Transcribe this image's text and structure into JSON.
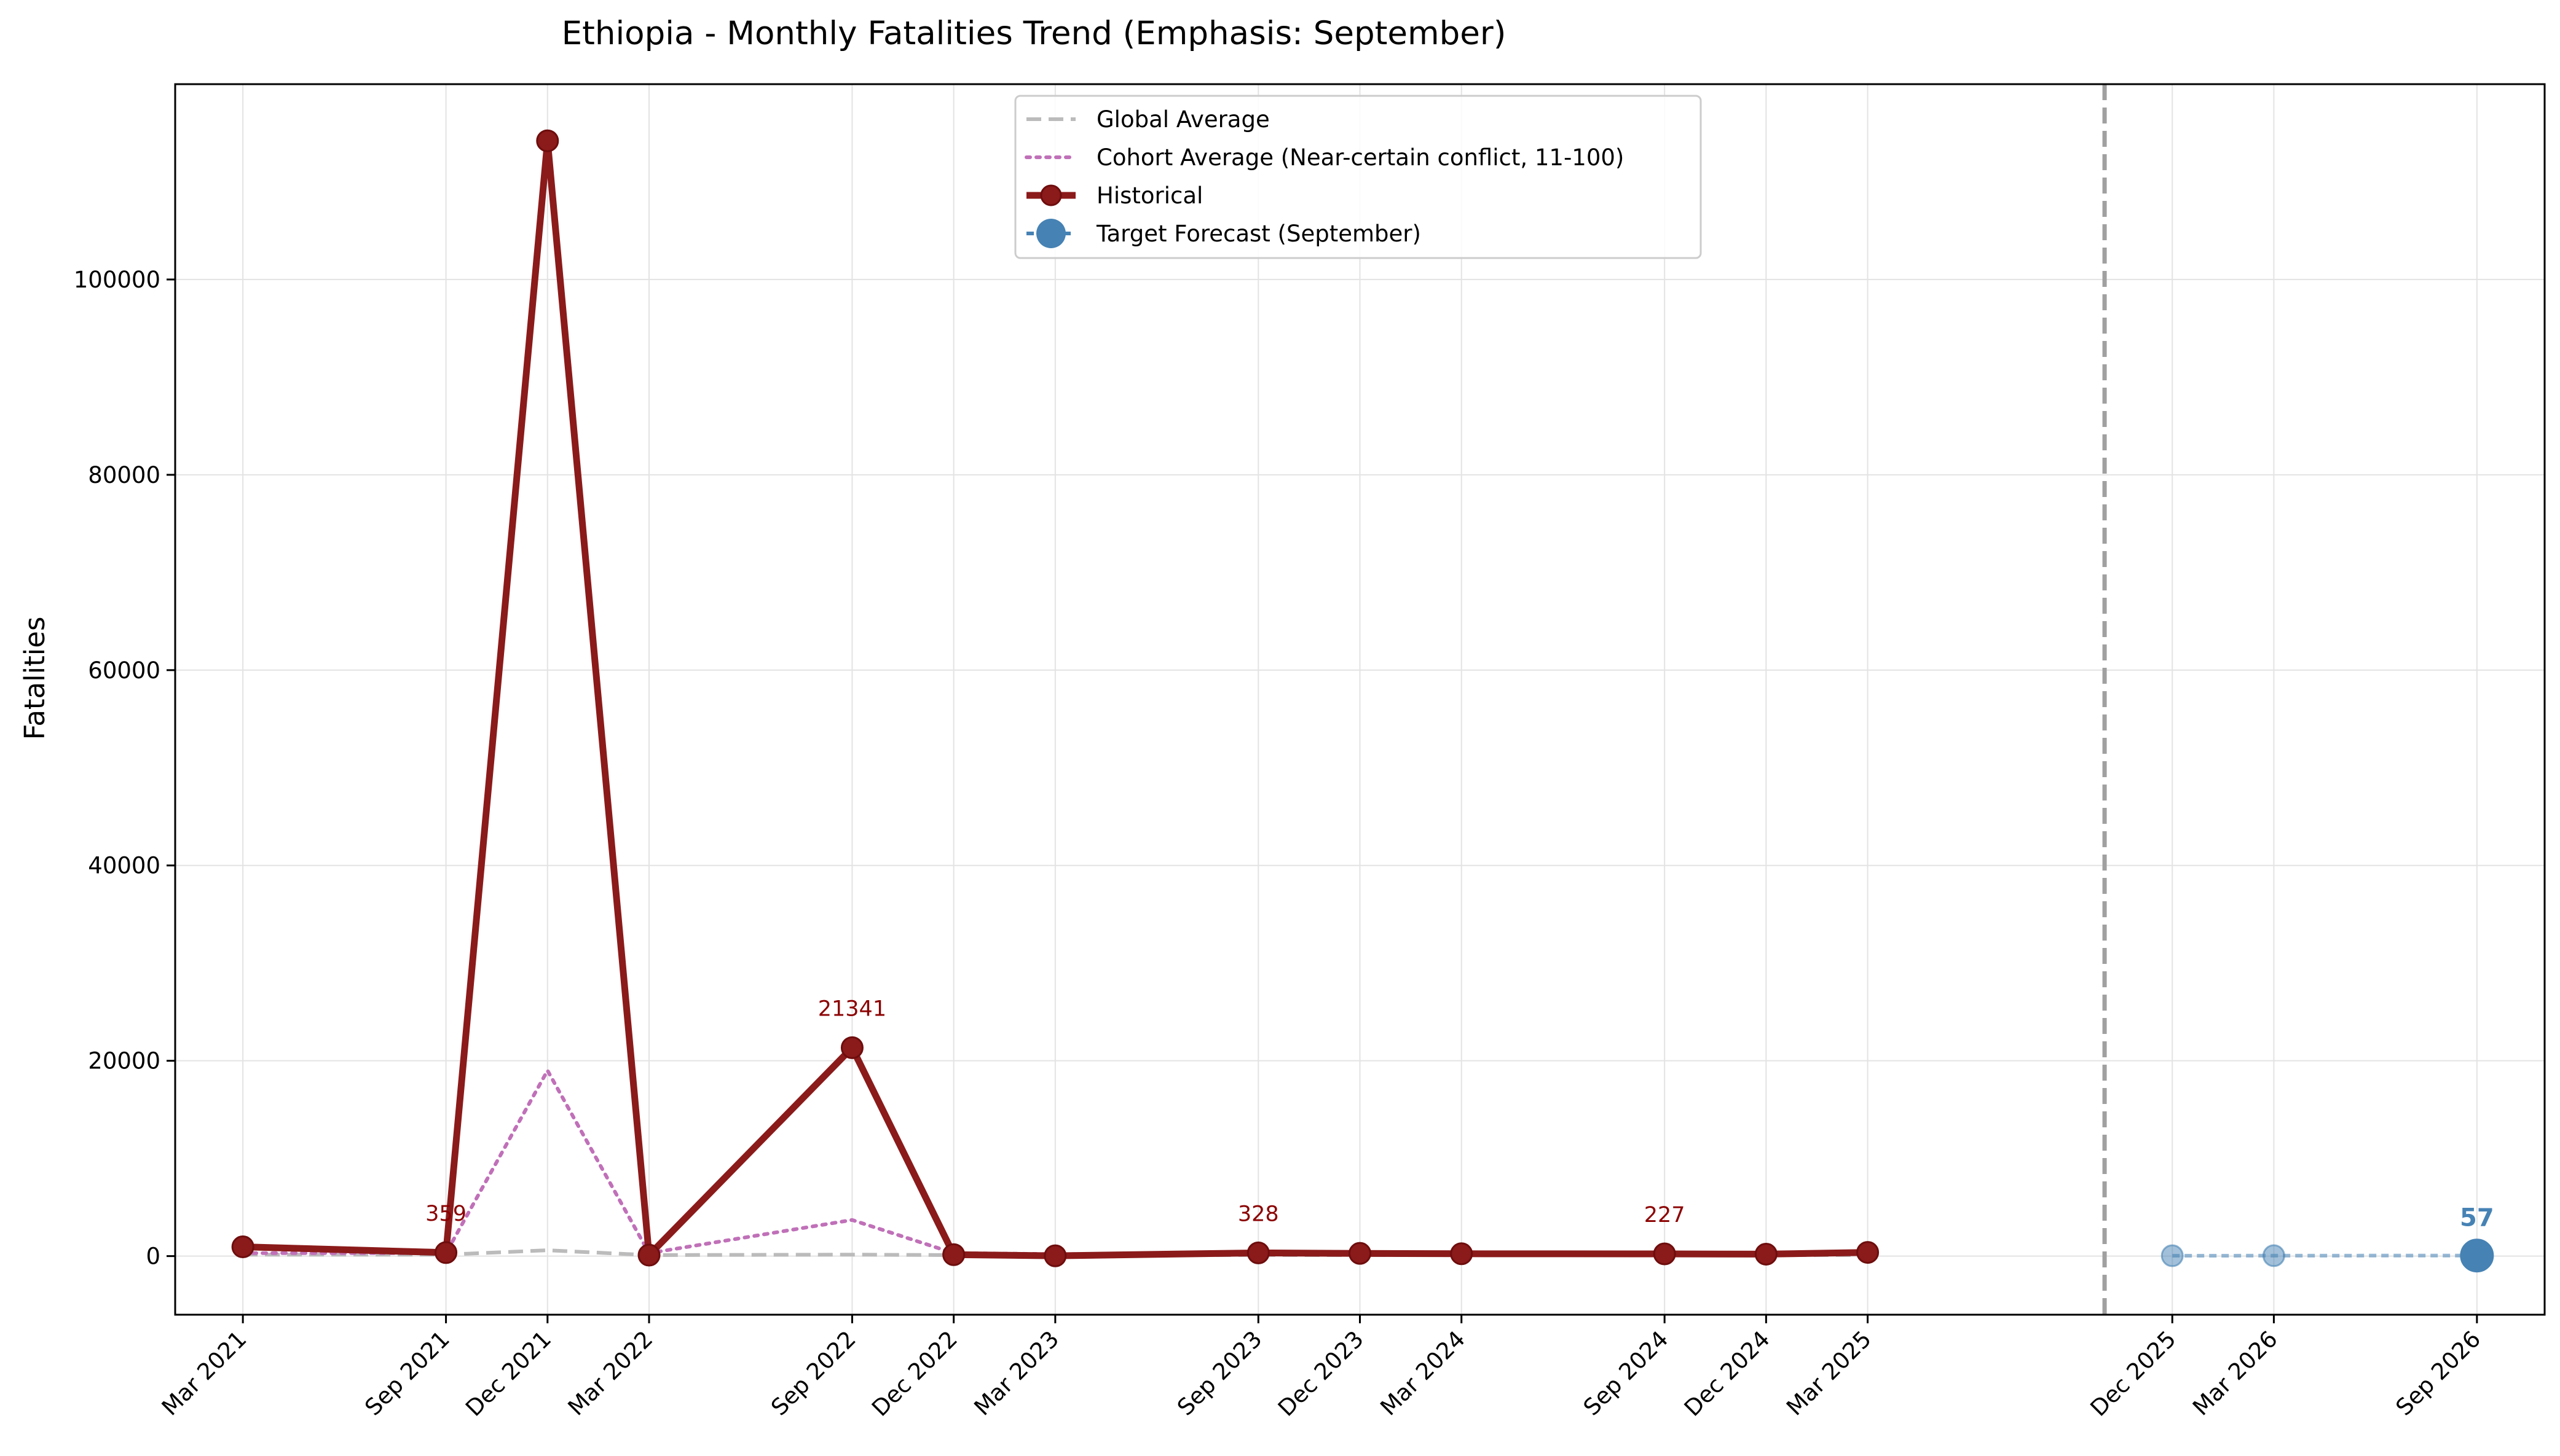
{
  "chart_data": {
    "type": "line",
    "title": "Ethiopia - Monthly Fatalities Trend (Emphasis: September)",
    "xlabel": "",
    "ylabel": "Fatalities",
    "x_range": [
      "2021-01",
      "2026-11"
    ],
    "ylim": [
      -6000,
      120000
    ],
    "y_ticks": [
      0,
      20000,
      40000,
      60000,
      80000,
      100000
    ],
    "x_ticks": [
      {
        "date": "2021-03",
        "label": "Mar 2021"
      },
      {
        "date": "2021-09",
        "label": "Sep 2021"
      },
      {
        "date": "2021-12",
        "label": "Dec 2021"
      },
      {
        "date": "2022-03",
        "label": "Mar 2022"
      },
      {
        "date": "2022-09",
        "label": "Sep 2022"
      },
      {
        "date": "2022-12",
        "label": "Dec 2022"
      },
      {
        "date": "2023-03",
        "label": "Mar 2023"
      },
      {
        "date": "2023-09",
        "label": "Sep 2023"
      },
      {
        "date": "2023-12",
        "label": "Dec 2023"
      },
      {
        "date": "2024-03",
        "label": "Mar 2024"
      },
      {
        "date": "2024-09",
        "label": "Sep 2024"
      },
      {
        "date": "2024-12",
        "label": "Dec 2024"
      },
      {
        "date": "2025-03",
        "label": "Mar 2025"
      },
      {
        "date": "2025-12",
        "label": "Dec 2025"
      },
      {
        "date": "2026-03",
        "label": "Mar 2026"
      },
      {
        "date": "2026-09",
        "label": "Sep 2026"
      }
    ],
    "grid": true,
    "legend_position": "top-center",
    "forecast_divider_date": "2025-10",
    "series": [
      {
        "name": "Global Average",
        "style": "dashed",
        "color": "#bbbbbb",
        "points": [
          {
            "date": "2021-03",
            "value": 150
          },
          {
            "date": "2021-09",
            "value": 150
          },
          {
            "date": "2021-12",
            "value": 600
          },
          {
            "date": "2022-03",
            "value": 100
          },
          {
            "date": "2022-09",
            "value": 150
          },
          {
            "date": "2022-12",
            "value": 100
          },
          {
            "date": "2023-03",
            "value": 100
          },
          {
            "date": "2023-09",
            "value": 100
          },
          {
            "date": "2023-12",
            "value": 100
          },
          {
            "date": "2024-03",
            "value": 100
          },
          {
            "date": "2024-09",
            "value": 100
          },
          {
            "date": "2024-12",
            "value": 100
          },
          {
            "date": "2025-03",
            "value": 100
          }
        ]
      },
      {
        "name": "Cohort Average (Near-certain conflict, 11-100)",
        "style": "dotted",
        "color": "#c070b8",
        "points": [
          {
            "date": "2021-03",
            "value": 300
          },
          {
            "date": "2021-09",
            "value": 300
          },
          {
            "date": "2021-12",
            "value": 19000
          },
          {
            "date": "2022-03",
            "value": 300
          },
          {
            "date": "2022-09",
            "value": 3700
          },
          {
            "date": "2022-12",
            "value": 300
          },
          {
            "date": "2023-03",
            "value": 200
          },
          {
            "date": "2023-09",
            "value": 200
          },
          {
            "date": "2023-12",
            "value": 200
          },
          {
            "date": "2024-03",
            "value": 200
          },
          {
            "date": "2024-09",
            "value": 200
          },
          {
            "date": "2024-12",
            "value": 200
          },
          {
            "date": "2025-03",
            "value": 200
          }
        ]
      },
      {
        "name": "Historical",
        "style": "solid-marker",
        "color": "#8b1a1a",
        "points": [
          {
            "date": "2021-03",
            "value": 950
          },
          {
            "date": "2021-09",
            "value": 359
          },
          {
            "date": "2021-12",
            "value": 114200
          },
          {
            "date": "2022-03",
            "value": 100
          },
          {
            "date": "2022-09",
            "value": 21341
          },
          {
            "date": "2022-12",
            "value": 150
          },
          {
            "date": "2023-03",
            "value": 30
          },
          {
            "date": "2023-09",
            "value": 328
          },
          {
            "date": "2023-12",
            "value": 280
          },
          {
            "date": "2024-03",
            "value": 240
          },
          {
            "date": "2024-09",
            "value": 227
          },
          {
            "date": "2024-12",
            "value": 200
          },
          {
            "date": "2025-03",
            "value": 380
          }
        ]
      },
      {
        "name": "Target Forecast (September)",
        "style": "forecast-marker",
        "color": "#4682b4",
        "points": [
          {
            "date": "2025-12",
            "value": 40
          },
          {
            "date": "2026-03",
            "value": 45
          },
          {
            "date": "2026-09",
            "value": 57
          }
        ]
      }
    ],
    "annotations": [
      {
        "series": "Historical",
        "date": "2021-09",
        "value": 359,
        "text": "359"
      },
      {
        "series": "Historical",
        "date": "2022-09",
        "value": 21341,
        "text": "21341"
      },
      {
        "series": "Historical",
        "date": "2023-09",
        "value": 328,
        "text": "328"
      },
      {
        "series": "Historical",
        "date": "2024-09",
        "value": 227,
        "text": "227"
      },
      {
        "series": "Target Forecast (September)",
        "date": "2026-09",
        "value": 57,
        "text": "57"
      }
    ]
  }
}
